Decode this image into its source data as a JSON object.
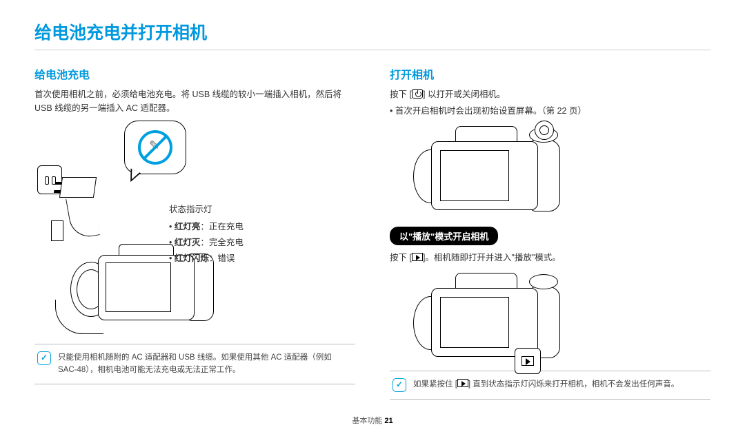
{
  "page_title": "给电池充电并打开相机",
  "colors": {
    "accent": "#0099dd",
    "text": "#333333",
    "rule": "#cccccc",
    "note_border": "#bbbbbb"
  },
  "left": {
    "heading": "给电池充电",
    "para1": "首次使用相机之前，必须给电池充电。将 USB 线缆的较小一端插入相机，然后将 USB 线缆的另一端插入 AC 适配器。",
    "status_label": "状态指示灯",
    "status_items": [
      {
        "bold": "红灯亮",
        "rest": "：正在充电"
      },
      {
        "bold": "红灯灭",
        "rest": "：完全充电"
      },
      {
        "bold": "红灯闪烁",
        "rest": "：错误"
      }
    ],
    "note": "只能使用相机随附的 AC 适配器和 USB 线缆。如果使用其他 AC 适配器（例如 SAC-48），相机电池可能无法充电或无法正常工作。"
  },
  "right": {
    "heading": "打开相机",
    "line1_a": "按下 [",
    "line1_b": "] 以打开或关闭相机。",
    "bullet1": "• 首次开启相机时会出现初始设置屏幕。（第 22 页）",
    "pill": "以\"播放\"模式开启相机",
    "line2_a": "按下 [",
    "line2_b": "]。相机随即打开并进入\"播放\"模式。",
    "note_a": "如果紧按住 [",
    "note_b": "] 直到状态指示灯闪烁来打开相机，相机不会发出任何声音。"
  },
  "footer_label": "基本功能",
  "footer_page": "21"
}
